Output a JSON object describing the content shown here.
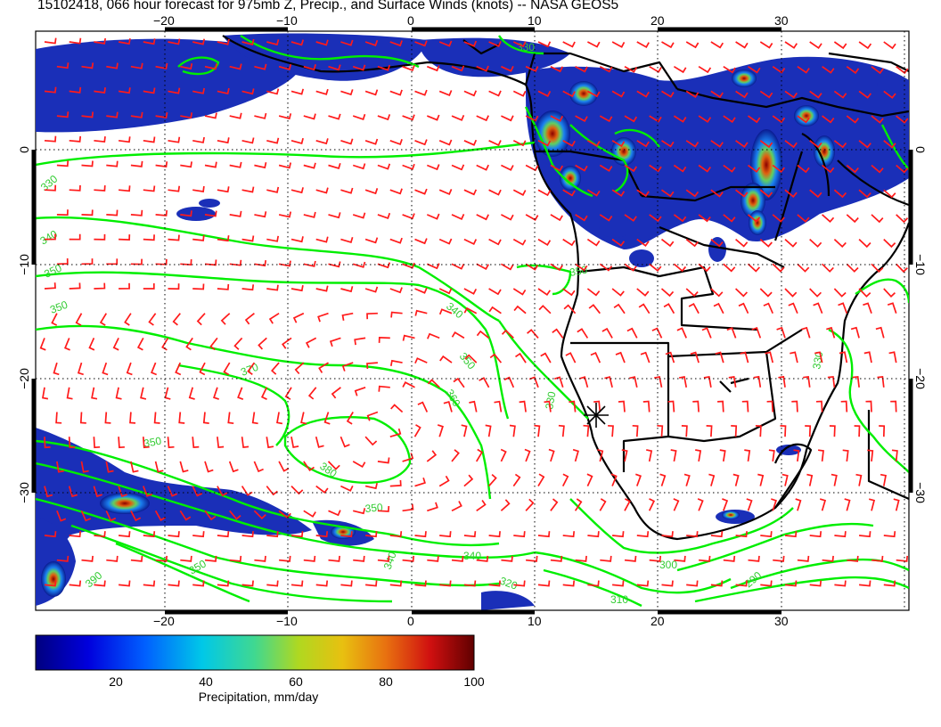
{
  "title": "15102418, 066 hour forecast for 975mb Z, Precip., and Surface Winds (knots) -- NASA GEOS5",
  "map": {
    "lon_range": [
      -30,
      40
    ],
    "lat_range": [
      -40,
      10
    ],
    "lon_ticks": [
      "−20",
      "−10",
      "0",
      "10",
      "20",
      "30"
    ],
    "lat_ticks": [
      "0",
      "−10",
      "−20",
      "−30"
    ],
    "contour_color": "#00ee00",
    "barb_color": "#ff0000",
    "coast_color": "#000000",
    "contour_labels": [
      "330",
      "340",
      "350",
      "360",
      "370",
      "380",
      "320",
      "310",
      "300",
      "290",
      "390"
    ],
    "marker": "station-star"
  },
  "colorbar": {
    "label": "Precipitation, mm/day",
    "ticks": [
      "20",
      "40",
      "60",
      "80",
      "100"
    ],
    "range": [
      0,
      100
    ],
    "colors": [
      "#0b0b8a",
      "#1d3cc8",
      "#2f78e8",
      "#22b8d8",
      "#3fd09a",
      "#a8d630",
      "#e8c418",
      "#e87414",
      "#c81414",
      "#6a0a0a"
    ]
  }
}
